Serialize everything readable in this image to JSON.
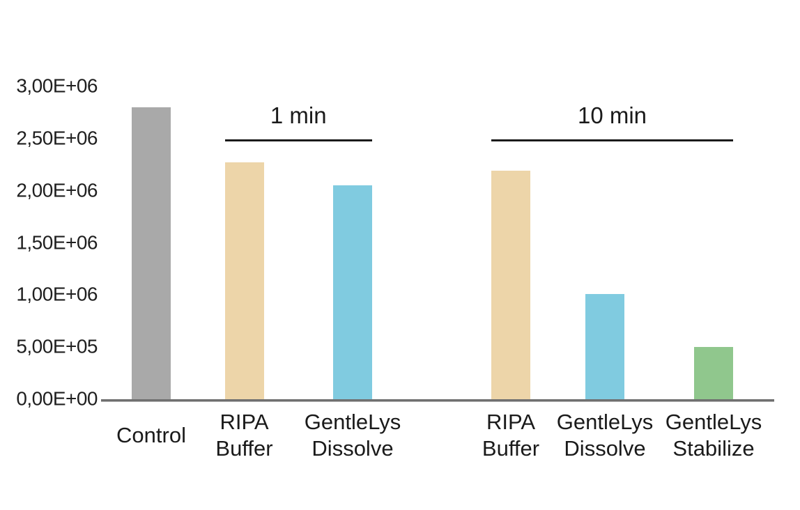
{
  "chart_data": {
    "type": "bar",
    "title": "",
    "xlabel": "",
    "ylabel": "",
    "categories": [
      "Control",
      "RIPA\nBuffer",
      "GentleLys\nDissolve",
      "RIPA\nBuffer",
      "GentleLys\nDissolve",
      "GentleLys\nStabilize"
    ],
    "values": [
      2800000,
      2270000,
      2050000,
      2190000,
      1010000,
      500000
    ],
    "bar_colors": [
      "#a9a9a9",
      "#edd5a9",
      "#80cbe0",
      "#edd5a9",
      "#80cbe0",
      "#90c78d"
    ],
    "ylim": [
      0,
      3000000
    ],
    "y_ticks": [
      {
        "value": 0,
        "label": "0,00E+00"
      },
      {
        "value": 500000,
        "label": "5,00E+05"
      },
      {
        "value": 1000000,
        "label": "1,00E+06"
      },
      {
        "value": 1500000,
        "label": "1,50E+06"
      },
      {
        "value": 2000000,
        "label": "2,00E+06"
      },
      {
        "value": 2500000,
        "label": "2,50E+06"
      },
      {
        "value": 3000000,
        "label": "3,00E+06"
      }
    ],
    "grid": false,
    "legend": false,
    "group_annotations": [
      {
        "label": "1 min",
        "start_bar": 1,
        "end_bar": 2
      },
      {
        "label": "10 min",
        "start_bar": 3,
        "end_bar": 5
      }
    ]
  },
  "colors": {
    "background": "#ffffff",
    "axis_line": "#6f6f6f",
    "annotation_line": "#1a1a1a",
    "text": "#1f1f1f",
    "bar_gray": "#a9a9a9",
    "bar_tan": "#edd5a9",
    "bar_blue": "#80cbe0",
    "bar_green": "#90c78d"
  }
}
